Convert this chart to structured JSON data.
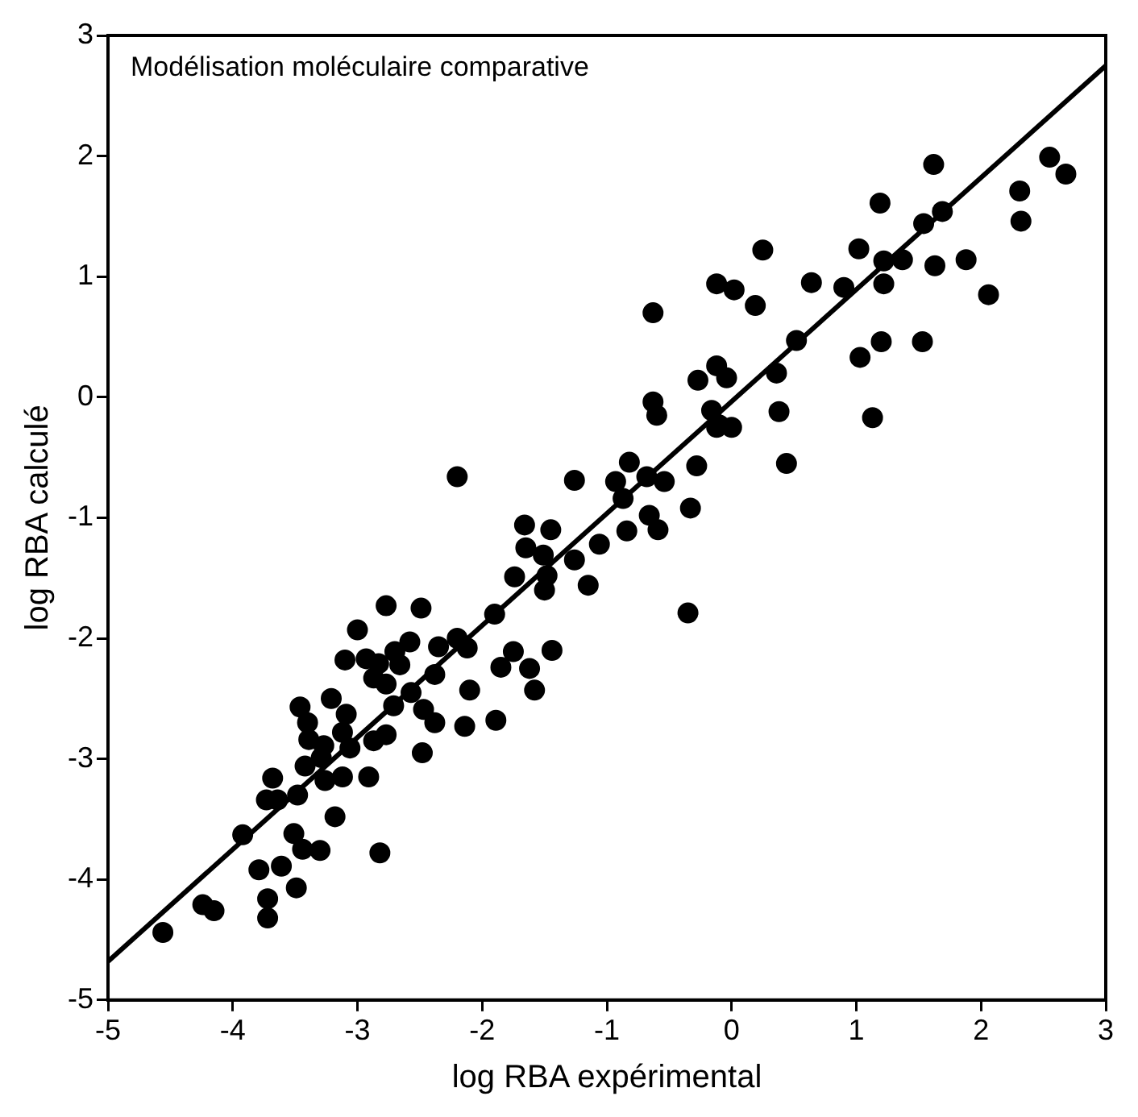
{
  "chart_data": {
    "type": "scatter",
    "title": "Modélisation moléculaire comparative",
    "xlabel": "log RBA expérimental",
    "ylabel": "log RBA calculé",
    "xlim": [
      -5,
      3
    ],
    "xticks": [
      -5,
      -4,
      -3,
      -2,
      -1,
      0,
      1,
      2,
      3
    ],
    "ylim": [
      -5,
      3
    ],
    "yticks": [
      -5,
      -4,
      -3,
      -2,
      -1,
      0,
      1,
      2,
      3
    ],
    "grid": false,
    "legend": false,
    "marker": "circle",
    "series": [
      {
        "color": "#000000",
        "x": [
          -4.56,
          -4.24,
          -4.15,
          -3.72,
          -3.72,
          -3.79,
          -3.61,
          -3.49,
          -3.92,
          -3.51,
          -3.44,
          -3.3,
          -3.18,
          -2.82,
          -3.73,
          -3.64,
          -3.68,
          -3.48,
          -3.42,
          -3.26,
          -3.12,
          -2.91,
          -3.29,
          -3.46,
          -3.4,
          -3.39,
          -3.27,
          -3.21,
          -3.09,
          -3.12,
          -3.06,
          -2.87,
          -2.77,
          -2.71,
          -2.48,
          -2.47,
          -2.38,
          -2.57,
          -2.38,
          -2.1,
          -2.14,
          -3.1,
          -3.0,
          -2.93,
          -2.87,
          -2.83,
          -2.77,
          -2.77,
          -2.7,
          -2.66,
          -2.58,
          -2.49,
          -2.35,
          -2.2,
          -2.12,
          -2.2,
          -1.9,
          -1.66,
          -1.45,
          -1.65,
          -1.51,
          -1.74,
          -1.48,
          -1.5,
          -1.26,
          -1.15,
          -1.06,
          -1.26,
          -0.93,
          -0.82,
          -0.87,
          -0.68,
          -0.54,
          -0.84,
          -0.66,
          -0.59,
          -0.33,
          -0.28,
          -0.35,
          -0.16,
          -0.1,
          -1.75,
          -1.44,
          -1.85,
          -1.62,
          -1.58,
          -1.89,
          -0.63,
          -0.63,
          -0.6,
          -0.27,
          -0.12,
          -0.04,
          -0.12,
          0.0,
          -0.12,
          0.02,
          0.19,
          0.25,
          0.36,
          0.38,
          0.44,
          0.52,
          0.64,
          0.9,
          1.02,
          1.03,
          1.2,
          1.13,
          1.19,
          1.22,
          1.22,
          1.37,
          1.53,
          1.54,
          1.62,
          1.69,
          1.63,
          1.88,
          2.06,
          2.31,
          2.32,
          2.55,
          2.68
        ],
        "values": [
          -4.44,
          -4.21,
          -4.26,
          -4.16,
          -4.32,
          -3.92,
          -3.89,
          -4.07,
          -3.63,
          -3.62,
          -3.75,
          -3.76,
          -3.48,
          -3.78,
          -3.34,
          -3.34,
          -3.16,
          -3.3,
          -3.06,
          -3.18,
          -3.15,
          -3.15,
          -2.99,
          -2.57,
          -2.7,
          -2.84,
          -2.89,
          -2.5,
          -2.63,
          -2.78,
          -2.91,
          -2.85,
          -2.8,
          -2.56,
          -2.95,
          -2.59,
          -2.7,
          -2.45,
          -2.3,
          -2.43,
          -2.73,
          -2.18,
          -1.93,
          -2.17,
          -2.33,
          -2.21,
          -2.38,
          -1.73,
          -2.11,
          -2.22,
          -2.03,
          -1.75,
          -2.07,
          -2.0,
          -2.08,
          -0.66,
          -1.8,
          -1.06,
          -1.1,
          -1.25,
          -1.31,
          -1.49,
          -1.48,
          -1.6,
          -1.35,
          -1.56,
          -1.22,
          -0.69,
          -0.7,
          -0.54,
          -0.84,
          -0.66,
          -0.7,
          -1.11,
          -0.98,
          -1.1,
          -0.92,
          -0.57,
          -1.79,
          -0.11,
          -0.23,
          -2.11,
          -2.1,
          -2.24,
          -2.25,
          -2.43,
          -2.68,
          0.7,
          -0.04,
          -0.15,
          0.14,
          0.26,
          0.16,
          -0.25,
          -0.25,
          0.94,
          0.89,
          0.76,
          1.22,
          0.2,
          -0.12,
          -0.55,
          0.47,
          0.95,
          0.91,
          1.23,
          0.33,
          0.46,
          -0.17,
          1.61,
          1.13,
          0.94,
          1.14,
          0.46,
          1.44,
          1.93,
          1.54,
          1.09,
          1.14,
          0.85,
          1.71,
          1.46,
          1.99,
          1.85
        ]
      },
      {
        "type": "line",
        "color": "#000000",
        "marker": "none",
        "x": [
          -5,
          3
        ],
        "values": [
          -4.68,
          2.75
        ]
      }
    ]
  }
}
